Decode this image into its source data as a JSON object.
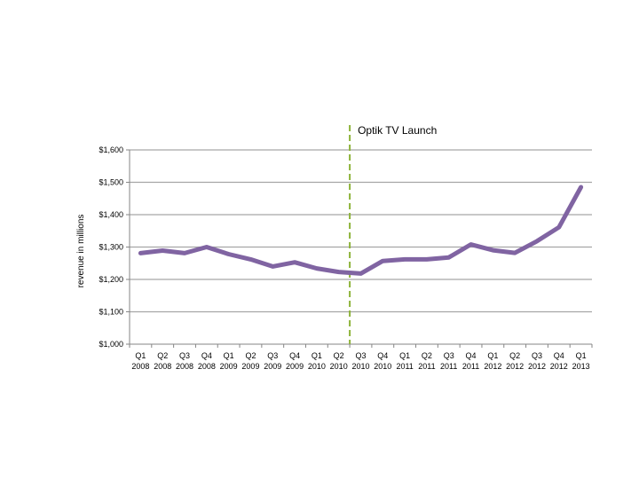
{
  "chart_data": {
    "type": "line",
    "title": "",
    "xlabel": "",
    "ylabel": "revenue in millions",
    "ylim": [
      1000,
      1600
    ],
    "yticks": [
      1000,
      1100,
      1200,
      1300,
      1400,
      1500,
      1600
    ],
    "ytick_labels": [
      "$1,000",
      "$1,100",
      "$1,200",
      "$1,300",
      "$1,400",
      "$1,500",
      "$1,600"
    ],
    "grid": true,
    "categories": [
      {
        "q": "Q1",
        "y": "2008"
      },
      {
        "q": "Q2",
        "y": "2008"
      },
      {
        "q": "Q3",
        "y": "2008"
      },
      {
        "q": "Q4",
        "y": "2008"
      },
      {
        "q": "Q1",
        "y": "2009"
      },
      {
        "q": "Q2",
        "y": "2009"
      },
      {
        "q": "Q3",
        "y": "2009"
      },
      {
        "q": "Q4",
        "y": "2009"
      },
      {
        "q": "Q1",
        "y": "2010"
      },
      {
        "q": "Q2",
        "y": "2010"
      },
      {
        "q": "Q3",
        "y": "2010"
      },
      {
        "q": "Q4",
        "y": "2010"
      },
      {
        "q": "Q1",
        "y": "2011"
      },
      {
        "q": "Q2",
        "y": "2011"
      },
      {
        "q": "Q3",
        "y": "2011"
      },
      {
        "q": "Q4",
        "y": "2011"
      },
      {
        "q": "Q1",
        "y": "2012"
      },
      {
        "q": "Q2",
        "y": "2012"
      },
      {
        "q": "Q3",
        "y": "2012"
      },
      {
        "q": "Q4",
        "y": "2012"
      },
      {
        "q": "Q1",
        "y": "2013"
      }
    ],
    "series": [
      {
        "name": "revenue",
        "color": "#8064a2",
        "values": [
          1281,
          1289,
          1281,
          1300,
          1278,
          1262,
          1240,
          1253,
          1234,
          1223,
          1218,
          1257,
          1262,
          1262,
          1268,
          1308,
          1290,
          1282,
          1318,
          1361,
          1485
        ]
      }
    ],
    "annotation": {
      "text": "Optik TV Launch",
      "after_category_index": 9,
      "line_color": "#8db33a"
    },
    "colors": {
      "grid": "#a6a6a6",
      "axis": "#868686"
    }
  }
}
